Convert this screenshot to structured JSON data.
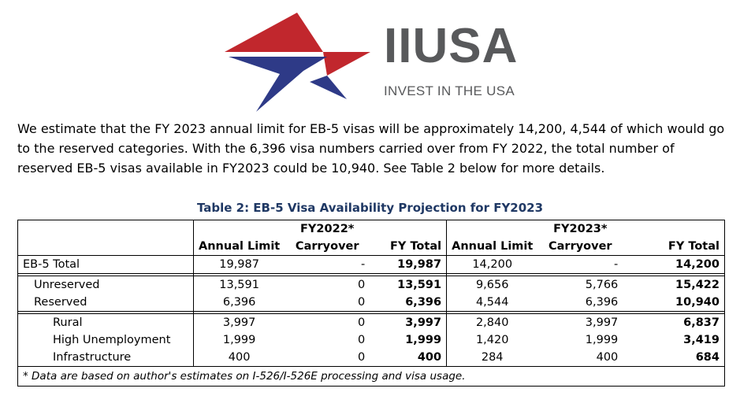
{
  "logo": {
    "brand_name": "IIUSA",
    "tagline": "INVEST IN THE USA",
    "star_red": "#c1272d",
    "star_blue": "#2e3a87",
    "text_gray": "#58595b"
  },
  "intro": "We estimate that the FY 2023 annual limit for EB-5 visas will be approximately 14,200, 4,544 of which would go to the reserved categories.  With the 6,396 visa numbers carried over from FY 2022, the total number of reserved EB-5 visas available in FY2023 could be 10,940.  See Table 2 below for more details.",
  "table": {
    "title": "Table 2: EB-5 Visa Availability Projection for FY2023",
    "group_headers": [
      "FY2022*",
      "FY2023*"
    ],
    "columns": [
      "Annual Limit",
      "Carryover",
      "FY Total",
      "Annual Limit",
      "Carryover",
      "FY Total"
    ],
    "rows": [
      {
        "label": "EB-5 Total",
        "values": [
          "19,987",
          "-",
          "19,987",
          "14,200",
          "-",
          "14,200"
        ]
      },
      {
        "label": "Unreserved",
        "values": [
          "13,591",
          "0",
          "13,591",
          "9,656",
          "5,766",
          "15,422"
        ]
      },
      {
        "label": "Reserved",
        "values": [
          "6,396",
          "0",
          "6,396",
          "4,544",
          "6,396",
          "10,940"
        ]
      },
      {
        "label": "Rural",
        "values": [
          "3,997",
          "0",
          "3,997",
          "2,840",
          "3,997",
          "6,837"
        ]
      },
      {
        "label": "High Unemployment",
        "values": [
          "1,999",
          "0",
          "1,999",
          "1,420",
          "1,999",
          "3,419"
        ]
      },
      {
        "label": "Infrastructure",
        "values": [
          "400",
          "0",
          "400",
          "284",
          "400",
          "684"
        ]
      }
    ],
    "footnote": "* Data are based on author's estimates on I-526/I-526E processing and visa usage."
  }
}
